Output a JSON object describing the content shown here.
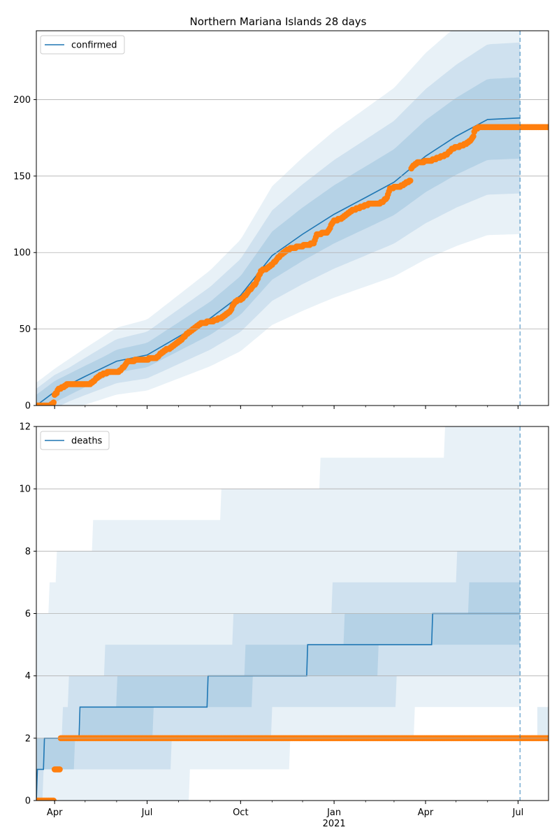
{
  "chart_data": [
    {
      "type": "line",
      "title": "Northern Mariana Islands 28 days",
      "xlabel": "",
      "ylabel": "",
      "x_start": "2020-03-14",
      "x_end": "2021-07-31",
      "forecast_date": "2021-07-03",
      "ylim": [
        0,
        245
      ],
      "yticks": [
        0,
        50,
        100,
        150,
        200
      ],
      "grid": "horizontal",
      "legend_position": "top-left",
      "series": [
        {
          "name": "confirmed",
          "kind": "median-line",
          "color": "#1f77b4",
          "points": [
            [
              "2020-03-14",
              0
            ],
            [
              "2020-04-01",
              9
            ],
            [
              "2020-05-01",
              19
            ],
            [
              "2020-06-01",
              29
            ],
            [
              "2020-07-01",
              33
            ],
            [
              "2020-08-01",
              45
            ],
            [
              "2020-09-01",
              57
            ],
            [
              "2020-10-01",
              72
            ],
            [
              "2020-11-01",
              98
            ],
            [
              "2020-12-01",
              112
            ],
            [
              "2021-01-01",
              125
            ],
            [
              "2021-02-01",
              136
            ],
            [
              "2021-03-01",
              146
            ],
            [
              "2021-04-01",
              163
            ],
            [
              "2021-05-01",
              176
            ],
            [
              "2021-06-01",
              187
            ],
            [
              "2021-07-03",
              188
            ]
          ]
        },
        {
          "name": "",
          "kind": "observed",
          "color": "#ff7f0e",
          "points": [
            [
              "2020-03-14",
              0
            ],
            [
              "2020-03-28",
              0
            ],
            [
              "2020-03-31",
              2
            ],
            [
              "2020-04-01",
              7
            ],
            [
              "2020-04-03",
              8
            ],
            [
              "2020-04-05",
              11
            ],
            [
              "2020-04-10",
              12
            ],
            [
              "2020-04-14",
              14
            ],
            [
              "2020-04-20",
              14
            ],
            [
              "2020-05-05",
              14
            ],
            [
              "2020-05-10",
              16
            ],
            [
              "2020-05-14",
              19
            ],
            [
              "2020-05-20",
              21
            ],
            [
              "2020-05-26",
              22
            ],
            [
              "2020-06-03",
              22
            ],
            [
              "2020-06-09",
              26
            ],
            [
              "2020-06-12",
              29
            ],
            [
              "2020-06-25",
              30
            ],
            [
              "2020-07-10",
              31
            ],
            [
              "2020-07-18",
              36
            ],
            [
              "2020-07-25",
              38
            ],
            [
              "2020-08-02",
              42
            ],
            [
              "2020-08-08",
              46
            ],
            [
              "2020-08-16",
              50
            ],
            [
              "2020-08-24",
              54
            ],
            [
              "2020-09-03",
              55
            ],
            [
              "2020-09-14",
              58
            ],
            [
              "2020-09-20",
              61
            ],
            [
              "2020-09-26",
              68
            ],
            [
              "2020-10-03",
              70
            ],
            [
              "2020-10-08",
              74
            ],
            [
              "2020-10-16",
              80
            ],
            [
              "2020-10-21",
              88
            ],
            [
              "2020-10-25",
              89
            ],
            [
              "2020-11-01",
              92
            ],
            [
              "2020-11-06",
              96
            ],
            [
              "2020-11-12",
              100
            ],
            [
              "2020-11-20",
              103
            ],
            [
              "2020-11-29",
              104
            ],
            [
              "2020-12-05",
              105
            ],
            [
              "2020-12-12",
              106
            ],
            [
              "2020-12-15",
              112
            ],
            [
              "2020-12-25",
              113
            ],
            [
              "2021-01-01",
              121
            ],
            [
              "2021-01-08",
              122
            ],
            [
              "2021-01-15",
              126
            ],
            [
              "2021-01-20",
              128
            ],
            [
              "2021-01-25",
              129
            ],
            [
              "2021-02-01",
              131
            ],
            [
              "2021-02-07",
              132
            ],
            [
              "2021-02-14",
              132
            ],
            [
              "2021-02-18",
              133
            ],
            [
              "2021-02-22",
              136
            ],
            [
              "2021-02-25",
              142
            ],
            [
              "2021-03-05",
              143
            ],
            [
              "2021-03-10",
              144
            ],
            [
              "2021-03-14",
              146
            ],
            [
              "2021-03-17",
              147
            ],
            [
              "2021-03-18",
              155
            ],
            [
              "2021-03-22",
              158
            ],
            [
              "2021-03-26",
              159
            ],
            [
              "2021-04-05",
              160
            ],
            [
              "2021-04-14",
              162
            ],
            [
              "2021-04-22",
              164
            ],
            [
              "2021-04-27",
              168
            ],
            [
              "2021-05-03",
              169
            ],
            [
              "2021-05-10",
              171
            ],
            [
              "2021-05-15",
              173
            ],
            [
              "2021-05-18",
              176
            ],
            [
              "2021-05-20",
              181
            ],
            [
              "2021-05-26",
              182
            ],
            [
              "2021-06-15",
              182
            ],
            [
              "2021-07-03",
              182
            ],
            [
              "2021-07-31",
              182
            ]
          ]
        }
      ]
    },
    {
      "type": "line",
      "title": "",
      "xlabel": "",
      "ylabel": "",
      "x_start": "2020-03-14",
      "x_end": "2021-07-31",
      "forecast_date": "2021-07-03",
      "ylim": [
        0,
        12
      ],
      "yticks": [
        0,
        2,
        4,
        6,
        8,
        10,
        12
      ],
      "xticks": [
        {
          "date": "2020-04-01",
          "label": "Apr",
          "sub": ""
        },
        {
          "date": "2020-07-01",
          "label": "Jul",
          "sub": ""
        },
        {
          "date": "2020-10-01",
          "label": "Oct",
          "sub": ""
        },
        {
          "date": "2021-01-01",
          "label": "Jan",
          "sub": "2021"
        },
        {
          "date": "2021-04-01",
          "label": "Apr",
          "sub": ""
        },
        {
          "date": "2021-07-01",
          "label": "Jul",
          "sub": ""
        }
      ],
      "grid": "horizontal",
      "legend_position": "top-left",
      "series": [
        {
          "name": "deaths",
          "kind": "median-line",
          "color": "#1f77b4",
          "points": [
            [
              "2020-03-14",
              0
            ],
            [
              "2020-03-15",
              1
            ],
            [
              "2020-03-21",
              1
            ],
            [
              "2020-03-22",
              2
            ],
            [
              "2020-04-25",
              2
            ],
            [
              "2020-04-26",
              3
            ],
            [
              "2020-08-29",
              3
            ],
            [
              "2020-08-30",
              4
            ],
            [
              "2020-12-05",
              4
            ],
            [
              "2020-12-06",
              5
            ],
            [
              "2021-04-07",
              5
            ],
            [
              "2021-04-08",
              6
            ],
            [
              "2021-07-03",
              6
            ]
          ]
        },
        {
          "name": "",
          "kind": "observed",
          "color": "#ff7f0e",
          "points": [
            [
              "2020-03-14",
              0
            ],
            [
              "2020-03-31",
              0
            ],
            [
              "2020-04-01",
              1
            ],
            [
              "2020-04-05",
              1
            ],
            [
              "2020-04-07",
              2
            ],
            [
              "2021-07-31",
              2
            ]
          ]
        }
      ]
    }
  ]
}
